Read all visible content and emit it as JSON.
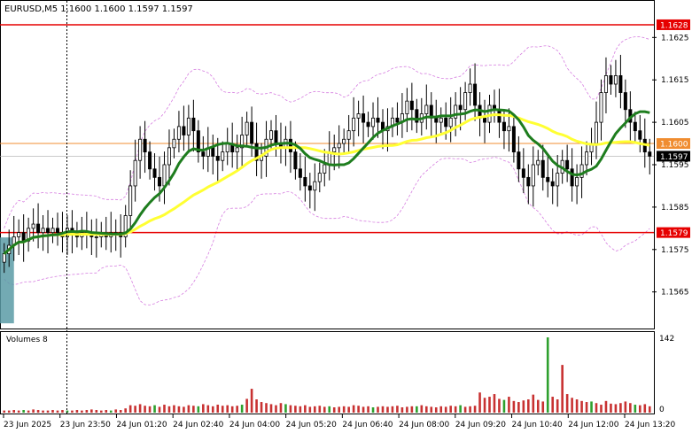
{
  "chart_data": {
    "type": "candlestick",
    "header": "EURUSD,M5  1.1600 1.1600 1.1597 1.1597",
    "price_levels": {
      "upper": "1.1628",
      "current": "1.1600",
      "last": "1.1597",
      "lower": "1.1579"
    },
    "y_ticks": [
      "1.1625",
      "1.1615",
      "1.1605",
      "1.1595",
      "1.1585",
      "1.1575",
      "1.1565"
    ],
    "ylim": [
      1.1557,
      1.1633
    ],
    "volume_panel": {
      "label": "Volumes 8",
      "ticks": [
        "142",
        "0"
      ],
      "max": 142
    },
    "x_ticks": [
      "23 Jun 2025",
      "23 Jun 23:50",
      "24 Jun 01:20",
      "24 Jun 02:40",
      "24 Jun 04:00",
      "24 Jun 05:20",
      "24 Jun 06:40",
      "24 Jun 08:00",
      "24 Jun 09:20",
      "24 Jun 10:40",
      "24 Jun 12:00",
      "24 Jun 13:20"
    ],
    "close_series": [
      1.1574,
      1.1576,
      1.1578,
      1.1579,
      1.1577,
      1.158,
      1.1581,
      1.1579,
      1.158,
      1.1579,
      1.158,
      1.1579,
      1.1578,
      1.158,
      1.1579,
      1.1578,
      1.1579,
      1.1579,
      1.1578,
      1.1578,
      1.1579,
      1.1578,
      1.1579,
      1.1579,
      1.1578,
      1.1583,
      1.159,
      1.1596,
      1.1601,
      1.1598,
      1.1594,
      1.1592,
      1.159,
      1.1595,
      1.1599,
      1.1601,
      1.1604,
      1.1602,
      1.1606,
      1.1603,
      1.1598,
      1.1597,
      1.1599,
      1.1597,
      1.1596,
      1.1598,
      1.16,
      1.1598,
      1.1599,
      1.1602,
      1.1605,
      1.16,
      1.1596,
      1.1597,
      1.1601,
      1.1603,
      1.16,
      1.1599,
      1.1601,
      1.1598,
      1.1594,
      1.1592,
      1.159,
      1.1589,
      1.1591,
      1.1593,
      1.1595,
      1.1598,
      1.1599,
      1.16,
      1.1601,
      1.1603,
      1.1606,
      1.1607,
      1.1605,
      1.1604,
      1.1606,
      1.1605,
      1.1603,
      1.1604,
      1.1606,
      1.1605,
      1.1607,
      1.161,
      1.1608,
      1.1605,
      1.1607,
      1.1609,
      1.1606,
      1.1605,
      1.1606,
      1.1604,
      1.1606,
      1.1609,
      1.1608,
      1.1612,
      1.1614,
      1.1609,
      1.1606,
      1.1605,
      1.1609,
      1.1608,
      1.1605,
      1.1603,
      1.1604,
      1.1598,
      1.1594,
      1.1592,
      1.159,
      1.1595,
      1.1596,
      1.1592,
      1.1591,
      1.159,
      1.1593,
      1.1596,
      1.1594,
      1.159,
      1.1592,
      1.1595,
      1.1598,
      1.16,
      1.1605,
      1.1612,
      1.1616,
      1.1614,
      1.1616,
      1.1612,
      1.1608,
      1.1605,
      1.1603,
      1.1601,
      1.1598,
      1.1597
    ],
    "volumes": [
      4,
      4,
      5,
      4,
      5,
      4,
      6,
      5,
      4,
      4,
      5,
      4,
      5,
      4,
      4,
      5,
      4,
      5,
      6,
      5,
      4,
      5,
      4,
      6,
      5,
      8,
      14,
      13,
      16,
      13,
      12,
      14,
      11,
      15,
      12,
      14,
      12,
      11,
      14,
      13,
      12,
      16,
      14,
      12,
      15,
      13,
      14,
      12,
      13,
      15,
      26,
      45,
      25,
      20,
      18,
      16,
      14,
      18,
      16,
      14,
      13,
      12,
      14,
      11,
      12,
      13,
      11,
      12,
      10,
      11,
      12,
      11,
      14,
      13,
      11,
      12,
      10,
      11,
      12,
      11,
      12,
      13,
      10,
      11,
      12,
      12,
      14,
      12,
      11,
      10,
      12,
      11,
      13,
      12,
      14,
      11,
      12,
      13,
      38,
      28,
      30,
      35,
      26,
      24,
      30,
      22,
      20,
      23,
      25,
      34,
      24,
      21,
      142,
      30,
      25,
      90,
      35,
      28,
      25,
      22,
      20,
      21,
      18,
      15,
      22,
      17,
      16,
      18,
      21,
      18,
      15,
      14,
      16,
      12
    ]
  },
  "colors": {
    "bull": "#000000",
    "bear": "#000000",
    "ma_slow": "#ffff33",
    "ma_fast": "#1e7d1e",
    "bands": "#d67ee0",
    "level_line": "#e60000",
    "current_line": "#f08c30",
    "volume": "#c83232",
    "volume_max": "#2ea02e",
    "highlight": "#5b9ba6"
  }
}
